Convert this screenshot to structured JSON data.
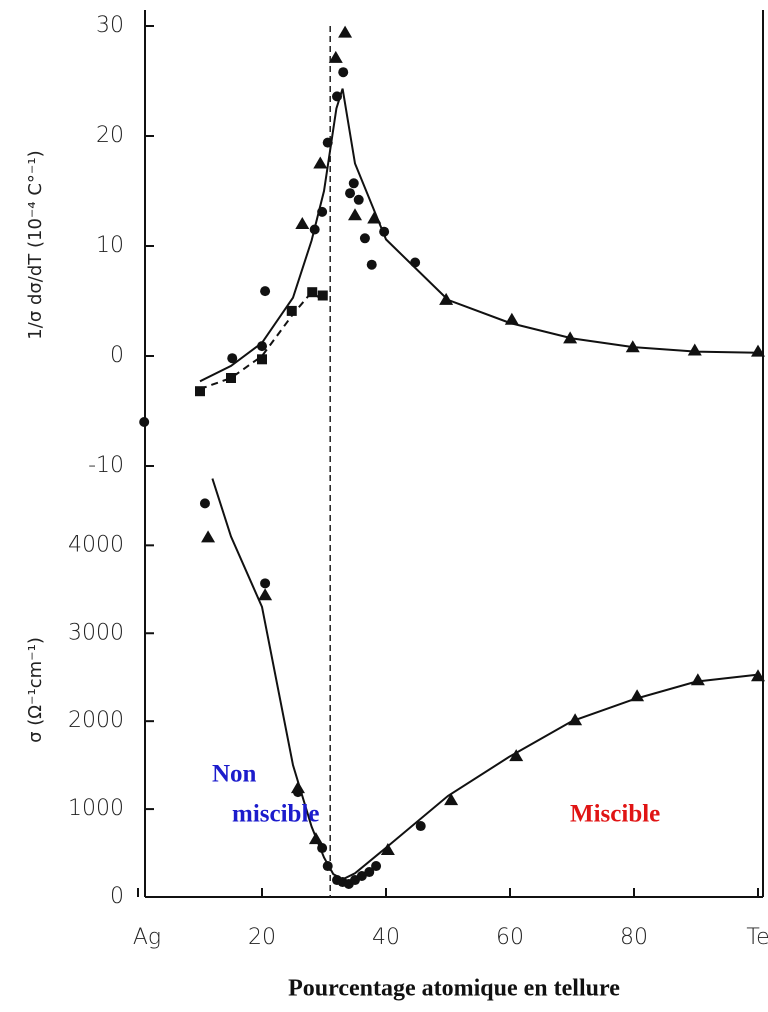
{
  "chart_data": [
    {
      "type": "scatter",
      "ylabel": "1/σ dσ/dT (10⁻⁴ C°⁻¹)",
      "xlim": [
        0,
        100
      ],
      "ylim": [
        -10,
        30
      ],
      "yticks": [
        -10,
        0,
        10,
        20,
        30
      ],
      "vline": 31,
      "series": [
        {
          "marker": "circle",
          "color": "#111111",
          "x": [
            1,
            15.2,
            20,
            20.5,
            28.5,
            29.7,
            30.6,
            32.1,
            33.1,
            34.2,
            34.8,
            35.6,
            36.6,
            37.7,
            39.7,
            44.7
          ],
          "values": [
            -6,
            -0.2,
            0.9,
            5.9,
            11.5,
            13.1,
            19.4,
            23.6,
            25.8,
            14.8,
            15.7,
            14.2,
            10.7,
            8.3,
            11.3,
            8.5
          ]
        },
        {
          "marker": "triangle",
          "color": "#111111",
          "x": [
            26.5,
            29.4,
            31.9,
            33.4,
            35,
            38.1,
            49.7,
            60.3,
            69.7,
            79.8,
            89.8,
            100
          ],
          "values": [
            12,
            17.5,
            27.1,
            29.4,
            12.8,
            12.5,
            5.1,
            3.3,
            1.6,
            0.8,
            0.5,
            0.4
          ]
        },
        {
          "marker": "square",
          "color": "#111111",
          "x": [
            10,
            15,
            20,
            24.8,
            28.1,
            29.8
          ],
          "values": [
            -3.2,
            -2,
            -0.3,
            4.1,
            5.8,
            5.5
          ]
        },
        {
          "line": "solid",
          "color": "#111111",
          "x": [
            10,
            15,
            20,
            25,
            28,
            30,
            32,
            33,
            35,
            40,
            50,
            60,
            70,
            80,
            90,
            100
          ],
          "values": [
            -2.3,
            -0.9,
            1.2,
            5.3,
            10.5,
            15,
            22.5,
            24.3,
            17.5,
            10.6,
            5.1,
            3,
            1.6,
            0.8,
            0.4,
            0.3
          ]
        },
        {
          "line": "dashed",
          "color": "#111111",
          "x": [
            10,
            15,
            20,
            25,
            28,
            30
          ],
          "values": [
            -3,
            -2,
            0,
            3.8,
            5.8,
            5
          ]
        }
      ]
    },
    {
      "type": "scatter",
      "ylabel": "σ (Ω⁻¹cm⁻¹)",
      "xlabel": "Pourcentage atomique en tellure",
      "xlim": [
        0,
        100
      ],
      "ylim": [
        0,
        4800
      ],
      "yticks": [
        0,
        1000,
        2000,
        3000,
        4000
      ],
      "vline": 31,
      "xticks": [
        {
          "value": 0,
          "label": "Ag"
        },
        20,
        40,
        60,
        80,
        {
          "value": 100,
          "label": "Te"
        }
      ],
      "annotations": [
        {
          "lines": [
            "Non",
            "miscible"
          ],
          "color": "#1c1ccc"
        },
        {
          "lines": [
            "Miscible"
          ],
          "color": "#e01414"
        }
      ],
      "series": [
        {
          "marker": "circle",
          "color": "#111111",
          "x": [
            10.8,
            20.5,
            25.8,
            29.7,
            30.6,
            32.1,
            33,
            34,
            35,
            36.1,
            37.3,
            38.4,
            45.6
          ],
          "values": [
            4477,
            3568,
            1193,
            557,
            352,
            193,
            170,
            148,
            193,
            239,
            284,
            352,
            807
          ]
        },
        {
          "marker": "triangle",
          "color": "#111111",
          "x": [
            11.3,
            20.5,
            25.8,
            28.7,
            40.3,
            50.5,
            61,
            70.5,
            80.5,
            90.3,
            100
          ],
          "values": [
            4090,
            3432,
            1239,
            659,
            534,
            1102,
            1602,
            2011,
            2284,
            2466,
            2511
          ]
        },
        {
          "line": "solid",
          "color": "#111111",
          "x": [
            12,
            15,
            20,
            25,
            28,
            30,
            31.5,
            33,
            35,
            40,
            50,
            60,
            70,
            80,
            90,
            100
          ],
          "values": [
            4760,
            4100,
            3300,
            1500,
            800,
            450,
            260,
            200,
            270,
            560,
            1150,
            1600,
            2000,
            2250,
            2450,
            2530
          ]
        }
      ]
    }
  ]
}
